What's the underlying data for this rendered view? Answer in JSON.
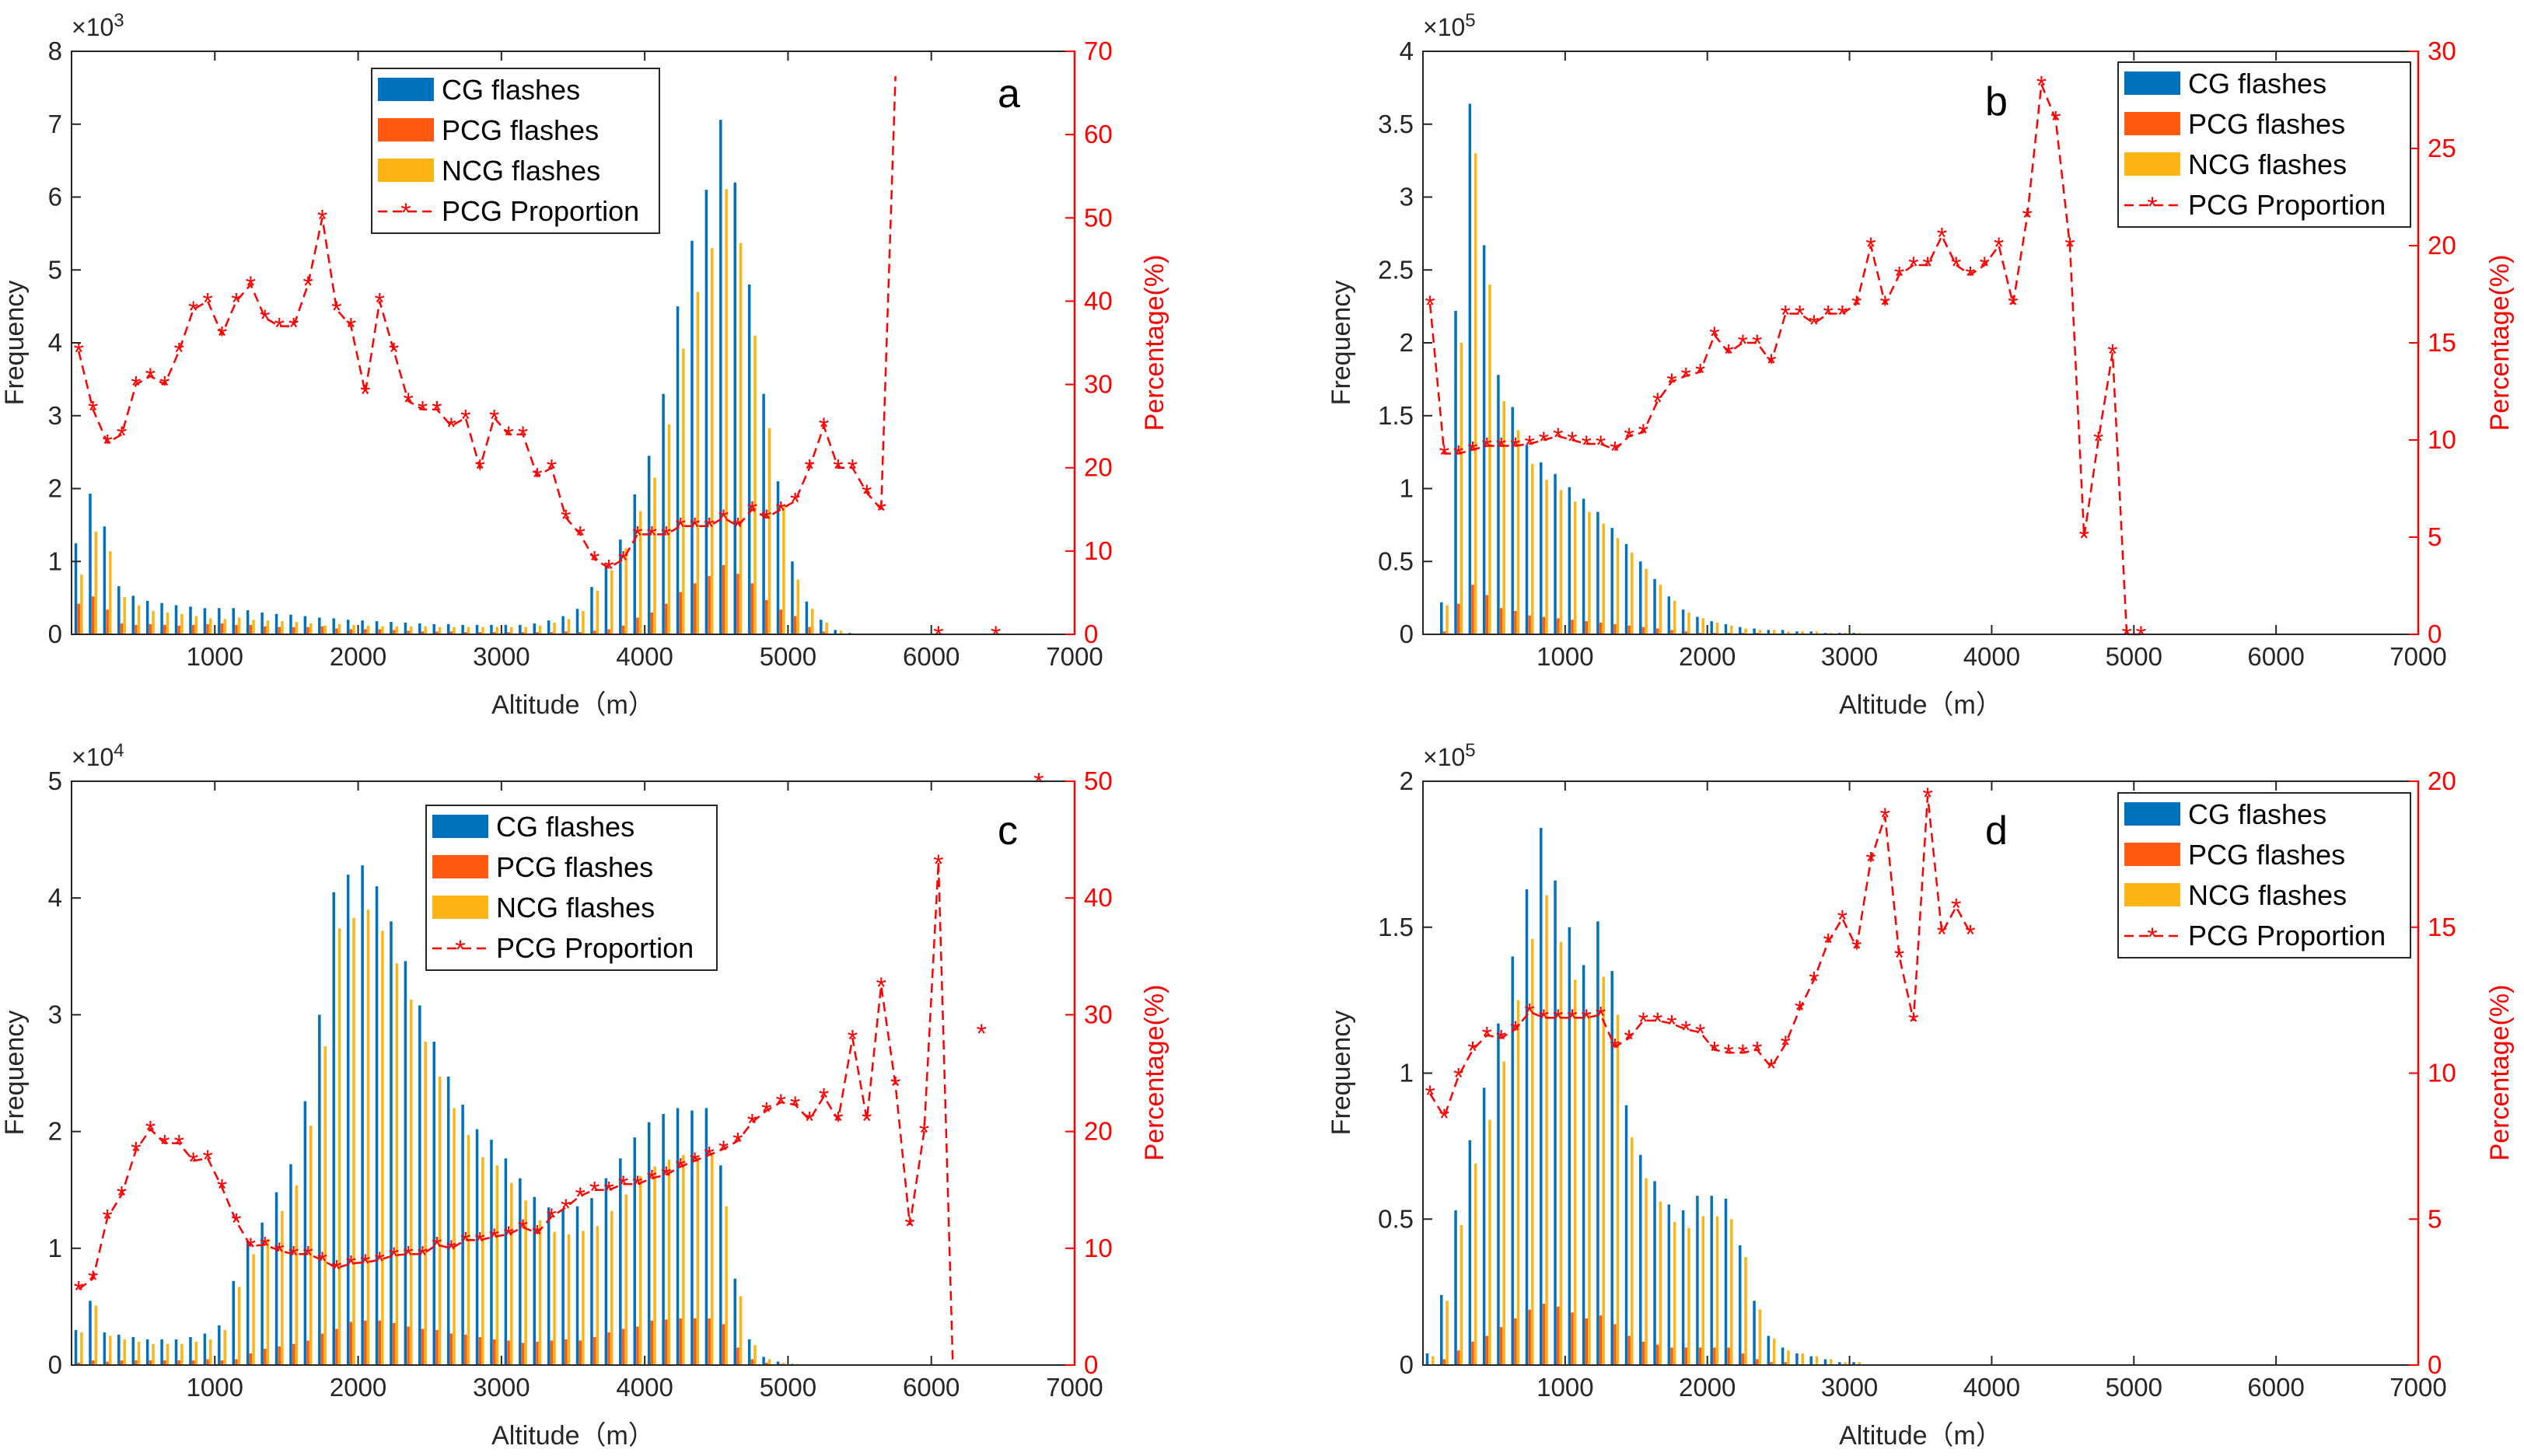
{
  "colors": {
    "cg": "#0072bd",
    "pcg": "#ff5a10",
    "ncg": "#fdb515",
    "proportion": "#ff0000",
    "axis": "#262626"
  },
  "legend": {
    "cg": "CG flashes",
    "pcg": "PCG flashes",
    "ncg": "NCG flashes",
    "proportion": "PCG Proportion"
  },
  "chart_data": [
    {
      "type": "bar",
      "panel": "a",
      "xlabel": "Altitude（m）",
      "ylabel": "Frequency",
      "ylabel_right": "Percentage(%)",
      "xlim": [
        0,
        7000
      ],
      "xticks": [
        1000,
        2000,
        3000,
        4000,
        5000,
        6000,
        7000
      ],
      "ylim": [
        0,
        8
      ],
      "yticks": [
        0,
        1,
        2,
        3,
        4,
        5,
        6,
        7,
        8
      ],
      "ymult_base": "×10",
      "ymult_exp": "3",
      "y2lim": [
        0,
        70
      ],
      "y2ticks": [
        0,
        10,
        20,
        30,
        40,
        50,
        60,
        70
      ],
      "x": [
        50,
        150,
        250,
        350,
        450,
        550,
        650,
        750,
        850,
        950,
        1050,
        1150,
        1250,
        1350,
        1450,
        1550,
        1650,
        1750,
        1850,
        1950,
        2050,
        2150,
        2250,
        2350,
        2450,
        2550,
        2650,
        2750,
        2850,
        2950,
        3050,
        3150,
        3250,
        3350,
        3450,
        3550,
        3650,
        3750,
        3850,
        3950,
        4050,
        4150,
        4250,
        4350,
        4450,
        4550,
        4650,
        4750,
        4850,
        4950,
        5050,
        5150,
        5250,
        5350,
        5450,
        5550
      ],
      "cg": [
        1.25,
        1.93,
        1.48,
        0.66,
        0.53,
        0.46,
        0.43,
        0.4,
        0.38,
        0.36,
        0.36,
        0.36,
        0.33,
        0.3,
        0.28,
        0.27,
        0.25,
        0.23,
        0.22,
        0.2,
        0.19,
        0.18,
        0.17,
        0.16,
        0.15,
        0.14,
        0.14,
        0.13,
        0.13,
        0.13,
        0.13,
        0.13,
        0.15,
        0.19,
        0.25,
        0.35,
        0.65,
        0.95,
        1.3,
        1.92,
        2.45,
        3.3,
        4.5,
        5.4,
        6.1,
        7.06,
        6.2,
        4.8,
        3.3,
        2.1,
        1.0,
        0.45,
        0.2,
        0.06,
        0.02,
        0.01
      ],
      "pcg": [
        0.42,
        0.52,
        0.34,
        0.15,
        0.13,
        0.14,
        0.13,
        0.12,
        0.13,
        0.14,
        0.15,
        0.13,
        0.13,
        0.11,
        0.1,
        0.1,
        0.1,
        0.11,
        0.08,
        0.07,
        0.07,
        0.07,
        0.06,
        0.05,
        0.04,
        0.04,
        0.04,
        0.03,
        0.03,
        0.03,
        0.03,
        0.03,
        0.03,
        0.03,
        0.04,
        0.03,
        0.05,
        0.07,
        0.12,
        0.23,
        0.3,
        0.42,
        0.58,
        0.7,
        0.8,
        0.95,
        0.83,
        0.7,
        0.47,
        0.34,
        0.25,
        0.1,
        0.04,
        0.01,
        0.01,
        0.0
      ],
      "ncg": [
        0.82,
        1.41,
        1.14,
        0.51,
        0.4,
        0.32,
        0.3,
        0.28,
        0.25,
        0.22,
        0.21,
        0.23,
        0.2,
        0.19,
        0.18,
        0.17,
        0.15,
        0.12,
        0.14,
        0.13,
        0.12,
        0.11,
        0.11,
        0.11,
        0.11,
        0.1,
        0.1,
        0.1,
        0.1,
        0.1,
        0.1,
        0.1,
        0.12,
        0.16,
        0.21,
        0.32,
        0.6,
        0.88,
        1.18,
        1.69,
        2.15,
        2.88,
        3.92,
        4.7,
        5.3,
        6.11,
        5.37,
        4.1,
        2.83,
        1.76,
        0.75,
        0.35,
        0.16,
        0.05,
        0.01,
        0.01
      ],
      "proportion_x": [
        50,
        150,
        250,
        350,
        450,
        550,
        650,
        750,
        850,
        950,
        1050,
        1150,
        1250,
        1350,
        1450,
        1550,
        1650,
        1750,
        1850,
        1950,
        2050,
        2150,
        2250,
        2350,
        2450,
        2550,
        2650,
        2750,
        2850,
        2950,
        3050,
        3150,
        3250,
        3350,
        3450,
        3550,
        3650,
        3750,
        3850,
        3950,
        4050,
        4150,
        4250,
        4350,
        4450,
        4550,
        4650,
        4750,
        4850,
        4950,
        5050,
        5150,
        5250,
        5350,
        5450,
        5550,
        5650
      ],
      "proportion": [
        34,
        27,
        23,
        24,
        30,
        31,
        30,
        34,
        39,
        40,
        36,
        40,
        42,
        38,
        37,
        37,
        42,
        50,
        39,
        37,
        29,
        40,
        34,
        28,
        27,
        27,
        25,
        26,
        20,
        26,
        24,
        24,
        19,
        20,
        14,
        12,
        9,
        8,
        9,
        12,
        12,
        12,
        13,
        13,
        13,
        14,
        13,
        15,
        14,
        15,
        16,
        20,
        25,
        20,
        20,
        17,
        15
      ],
      "proportion2_x": [
        5650,
        5750
      ],
      "proportion2": [
        15,
        67
      ],
      "extra_x": [
        6050,
        6450
      ],
      "extra": [
        0,
        0
      ]
    },
    {
      "type": "bar",
      "panel": "b",
      "xlabel": "Altitude（m）",
      "ylabel": "Frequency",
      "ylabel_right": "Percentage(%)",
      "xlim": [
        0,
        7000
      ],
      "xticks": [
        1000,
        2000,
        3000,
        4000,
        5000,
        6000,
        7000
      ],
      "ylim": [
        0,
        4
      ],
      "yticks": [
        0,
        0.5,
        1,
        1.5,
        2,
        2.5,
        3,
        3.5,
        4
      ],
      "ymult_base": "×10",
      "ymult_exp": "5",
      "y2lim": [
        0,
        30
      ],
      "y2ticks": [
        0,
        5,
        10,
        15,
        20,
        25,
        30
      ],
      "x": [
        150,
        250,
        350,
        450,
        550,
        650,
        750,
        850,
        950,
        1050,
        1150,
        1250,
        1350,
        1450,
        1550,
        1650,
        1750,
        1850,
        1950,
        2050,
        2150,
        2250,
        2350,
        2450,
        2550,
        2650,
        2750,
        2850,
        2950,
        3050
      ],
      "cg": [
        0.22,
        2.22,
        3.64,
        2.67,
        1.78,
        1.56,
        1.3,
        1.18,
        1.1,
        1.01,
        0.93,
        0.84,
        0.73,
        0.62,
        0.5,
        0.38,
        0.26,
        0.17,
        0.12,
        0.09,
        0.07,
        0.05,
        0.04,
        0.03,
        0.03,
        0.02,
        0.02,
        0.01,
        0.01,
        0.01
      ],
      "pcg": [
        0.02,
        0.21,
        0.34,
        0.27,
        0.18,
        0.16,
        0.13,
        0.12,
        0.11,
        0.1,
        0.09,
        0.08,
        0.07,
        0.06,
        0.05,
        0.04,
        0.03,
        0.02,
        0.01,
        0.01,
        0.01,
        0.01,
        0.01,
        0.0,
        0.0,
        0.0,
        0.0,
        0.0,
        0.0,
        0.0
      ],
      "ncg": [
        0.2,
        2.0,
        3.3,
        2.4,
        1.6,
        1.4,
        1.17,
        1.06,
        0.99,
        0.91,
        0.84,
        0.76,
        0.66,
        0.56,
        0.45,
        0.34,
        0.23,
        0.15,
        0.11,
        0.08,
        0.06,
        0.04,
        0.03,
        0.03,
        0.02,
        0.02,
        0.02,
        0.01,
        0.01,
        0.01
      ],
      "proportion_x": [
        50,
        150,
        250,
        350,
        450,
        550,
        650,
        750,
        850,
        950,
        1050,
        1150,
        1250,
        1350,
        1450,
        1550,
        1650,
        1750,
        1850,
        1950,
        2050,
        2150,
        2250,
        2350,
        2450,
        2550,
        2650,
        2750,
        2850,
        2950,
        3050,
        3150,
        3250,
        3350,
        3450,
        3550,
        3650,
        3750,
        3850,
        3950,
        4050,
        4150,
        4250,
        4350,
        4450,
        4550,
        4650,
        4750,
        4850,
        4950,
        5050,
        5150,
        5250
      ],
      "proportion": [
        17,
        9.3,
        9.3,
        9.5,
        9.7,
        9.7,
        9.7,
        9.8,
        10,
        10.2,
        10,
        9.8,
        9.8,
        9.5,
        10.2,
        10.4,
        12,
        13,
        13.3,
        13.5,
        15.4,
        14.5,
        15,
        15,
        14,
        16.5,
        16.5,
        16,
        16.5,
        16.5,
        17,
        20,
        17,
        18.5,
        19,
        19,
        20.5,
        19,
        18.5,
        19,
        20,
        17,
        21.5,
        28.3,
        26.5,
        20,
        5,
        10,
        14.5,
        0,
        0
      ]
    },
    {
      "type": "bar",
      "panel": "c",
      "xlabel": "Altitude（m）",
      "ylabel": "Frequency",
      "ylabel_right": "Percentage(%)",
      "xlim": [
        0,
        7000
      ],
      "xticks": [
        1000,
        2000,
        3000,
        4000,
        5000,
        6000,
        7000
      ],
      "ylim": [
        0,
        5
      ],
      "yticks": [
        0,
        1,
        2,
        3,
        4,
        5
      ],
      "ymult_base": "×10",
      "ymult_exp": "4",
      "y2lim": [
        0,
        50
      ],
      "y2ticks": [
        0,
        10,
        20,
        30,
        40,
        50
      ],
      "x": [
        50,
        150,
        250,
        350,
        450,
        550,
        650,
        750,
        850,
        950,
        1050,
        1150,
        1250,
        1350,
        1450,
        1550,
        1650,
        1750,
        1850,
        1950,
        2050,
        2150,
        2250,
        2350,
        2450,
        2550,
        2650,
        2750,
        2850,
        2950,
        3050,
        3150,
        3250,
        3350,
        3450,
        3550,
        3650,
        3750,
        3850,
        3950,
        4050,
        4150,
        4250,
        4350,
        4450,
        4550,
        4650,
        4750,
        4850,
        4950,
        5050
      ],
      "cg": [
        0.3,
        0.55,
        0.28,
        0.26,
        0.24,
        0.22,
        0.22,
        0.22,
        0.24,
        0.27,
        0.34,
        0.72,
        1.05,
        1.22,
        1.48,
        1.72,
        2.26,
        3.0,
        4.05,
        4.2,
        4.28,
        4.1,
        3.8,
        3.46,
        3.08,
        2.77,
        2.47,
        2.23,
        2.02,
        1.93,
        1.77,
        1.6,
        1.44,
        1.35,
        1.34,
        1.36,
        1.43,
        1.6,
        1.77,
        1.95,
        2.08,
        2.15,
        2.2,
        2.18,
        2.2,
        1.71,
        0.74,
        0.22,
        0.07,
        0.03,
        0.01
      ],
      "pcg": [
        0.02,
        0.04,
        0.03,
        0.04,
        0.04,
        0.04,
        0.04,
        0.04,
        0.04,
        0.05,
        0.04,
        0.05,
        0.1,
        0.14,
        0.16,
        0.18,
        0.21,
        0.27,
        0.31,
        0.37,
        0.38,
        0.38,
        0.36,
        0.33,
        0.31,
        0.3,
        0.27,
        0.26,
        0.24,
        0.22,
        0.21,
        0.19,
        0.2,
        0.21,
        0.22,
        0.21,
        0.24,
        0.28,
        0.31,
        0.33,
        0.38,
        0.39,
        0.4,
        0.4,
        0.4,
        0.35,
        0.15,
        0.05,
        0.02,
        0.01,
        0.0
      ],
      "ncg": [
        0.28,
        0.51,
        0.25,
        0.22,
        0.2,
        0.18,
        0.18,
        0.18,
        0.2,
        0.22,
        0.3,
        0.67,
        0.95,
        1.08,
        1.32,
        1.54,
        2.05,
        2.73,
        3.74,
        3.83,
        3.9,
        3.72,
        3.44,
        3.13,
        2.77,
        2.47,
        2.2,
        1.97,
        1.78,
        1.71,
        1.56,
        1.41,
        1.24,
        1.14,
        1.12,
        1.15,
        1.19,
        1.32,
        1.46,
        1.62,
        1.7,
        1.76,
        1.8,
        1.78,
        1.8,
        1.36,
        0.59,
        0.17,
        0.05,
        0.02,
        0.01
      ],
      "proportion_x": [
        50,
        150,
        250,
        350,
        450,
        550,
        650,
        750,
        850,
        950,
        1050,
        1150,
        1250,
        1350,
        1450,
        1550,
        1650,
        1750,
        1850,
        1950,
        2050,
        2150,
        2250,
        2350,
        2450,
        2550,
        2650,
        2750,
        2850,
        2950,
        3050,
        3150,
        3250,
        3350,
        3450,
        3550,
        3650,
        3750,
        3850,
        3950,
        4050,
        4150,
        4250,
        4350,
        4450,
        4550,
        4650,
        4750,
        4850,
        4950,
        5050,
        5150,
        5250,
        5350,
        5450,
        5550,
        5650,
        5750,
        5850,
        5950,
        6050
      ],
      "proportion": [
        6.5,
        7.4,
        12.6,
        14.6,
        18.4,
        20.2,
        19,
        19,
        17.5,
        17.7,
        15.2,
        12.3,
        10.2,
        10.3,
        9.8,
        9.5,
        9.5,
        9.0,
        8.3,
        8.7,
        8.8,
        9.0,
        9.4,
        9.5,
        9.5,
        10.3,
        10.0,
        10.7,
        10.7,
        11.0,
        11.2,
        11.8,
        11.3,
        12.7,
        13.5,
        14.5,
        15.0,
        15.0,
        15.5,
        15.5,
        16.0,
        16.3,
        17.0,
        17.5,
        18.0,
        18.5,
        19.2,
        20.8,
        21.8,
        22.5,
        22.3,
        21.0,
        23.0,
        21.0,
        28.0,
        21.0,
        32.5,
        24.0,
        12.0,
        20.0,
        43.0
      ],
      "proportion2_x": [
        6050,
        6150
      ],
      "proportion2": [
        43,
        0
      ],
      "extra_x": [
        6350,
        6750
      ],
      "extra": [
        28.5,
        50
      ]
    },
    {
      "type": "bar",
      "panel": "d",
      "xlabel": "Altitude（m）",
      "ylabel": "Frequency",
      "ylabel_right": "Percentage(%)",
      "xlim": [
        0,
        7000
      ],
      "xticks": [
        1000,
        2000,
        3000,
        4000,
        5000,
        6000,
        7000
      ],
      "ylim": [
        0,
        2
      ],
      "yticks": [
        0,
        0.5,
        1,
        1.5,
        2
      ],
      "ymult_base": "×10",
      "ymult_exp": "5",
      "y2lim": [
        0,
        20
      ],
      "y2ticks": [
        0,
        5,
        10,
        15,
        20
      ],
      "x": [
        50,
        150,
        250,
        350,
        450,
        550,
        650,
        750,
        850,
        950,
        1050,
        1150,
        1250,
        1350,
        1450,
        1550,
        1650,
        1750,
        1850,
        1950,
        2050,
        2150,
        2250,
        2350,
        2450,
        2550,
        2650,
        2750,
        2850,
        2950,
        3050
      ],
      "cg": [
        0.04,
        0.24,
        0.53,
        0.77,
        0.95,
        1.17,
        1.4,
        1.63,
        1.84,
        1.66,
        1.5,
        1.37,
        1.52,
        1.35,
        0.89,
        0.72,
        0.63,
        0.55,
        0.53,
        0.58,
        0.58,
        0.57,
        0.41,
        0.22,
        0.1,
        0.06,
        0.04,
        0.03,
        0.02,
        0.01,
        0.01
      ],
      "pcg": [
        0.0,
        0.02,
        0.05,
        0.08,
        0.1,
        0.13,
        0.16,
        0.19,
        0.21,
        0.2,
        0.18,
        0.16,
        0.17,
        0.14,
        0.1,
        0.08,
        0.07,
        0.06,
        0.06,
        0.06,
        0.06,
        0.06,
        0.04,
        0.02,
        0.01,
        0.01,
        0.0,
        0.0,
        0.0,
        0.0,
        0.0
      ],
      "ncg": [
        0.03,
        0.22,
        0.48,
        0.69,
        0.84,
        1.04,
        1.25,
        1.46,
        1.61,
        1.45,
        1.32,
        1.2,
        1.33,
        1.2,
        0.78,
        0.64,
        0.56,
        0.49,
        0.47,
        0.51,
        0.51,
        0.5,
        0.37,
        0.19,
        0.09,
        0.05,
        0.04,
        0.03,
        0.02,
        0.01,
        0.01
      ],
      "proportion_x": [
        50,
        150,
        250,
        350,
        450,
        550,
        650,
        750,
        850,
        950,
        1050,
        1150,
        1250,
        1350,
        1450,
        1550,
        1650,
        1750,
        1850,
        1950,
        2050,
        2150,
        2250,
        2350,
        2450,
        2550,
        2650,
        2750,
        2850,
        2950,
        3050,
        3150,
        3250,
        3350,
        3450,
        3550,
        3650,
        3750,
        3850,
        3950
      ],
      "proportion": [
        9.3,
        8.5,
        9.9,
        10.8,
        11.3,
        11.2,
        11.5,
        12.1,
        11.9,
        11.9,
        11.9,
        11.9,
        12.0,
        10.9,
        11.2,
        11.8,
        11.8,
        11.7,
        11.5,
        11.4,
        10.8,
        10.7,
        10.7,
        10.8,
        10.2,
        11.0,
        12.2,
        13.2,
        14.5,
        15.3,
        14.3,
        17.3,
        18.8,
        14.0,
        11.8,
        19.5,
        14.8,
        15.7,
        14.8,
        null
      ]
    }
  ]
}
